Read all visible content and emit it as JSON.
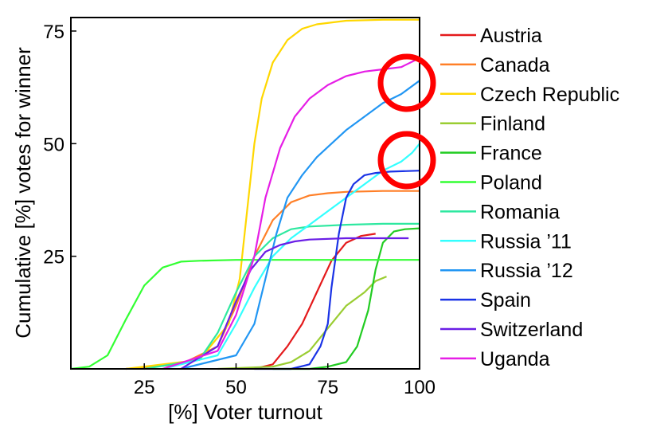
{
  "chart_data": {
    "type": "line",
    "xlabel": "[%] Voter turnout",
    "ylabel": "Cumulative [%] votes for winner",
    "xlim": [
      5,
      100
    ],
    "ylim": [
      0,
      78
    ],
    "xticks": [
      25,
      50,
      75,
      100
    ],
    "yticks": [
      25,
      50,
      75
    ],
    "grid": false,
    "legend_position": "right",
    "series": [
      {
        "name": "Austria",
        "color": "#e41a1c",
        "x": [
          55,
          60,
          64,
          68,
          72,
          76,
          80,
          84,
          88
        ],
        "y": [
          0,
          1,
          5,
          10,
          17,
          24,
          28,
          29.5,
          30
        ]
      },
      {
        "name": "Canada",
        "color": "#ff7f27",
        "x": [
          20,
          35,
          45,
          50,
          55,
          60,
          65,
          70,
          75,
          80,
          90,
          100
        ],
        "y": [
          0,
          1,
          5,
          14,
          25,
          33,
          37,
          38.5,
          39,
          39.3,
          39.5,
          39.5
        ]
      },
      {
        "name": "Czech Republic",
        "color": "#ffd700",
        "x": [
          20,
          40,
          48,
          51,
          53,
          55,
          57,
          60,
          64,
          68,
          72,
          80,
          90,
          100
        ],
        "y": [
          0,
          2,
          10,
          20,
          35,
          50,
          60,
          68,
          73,
          75.5,
          76.5,
          77.3,
          77.5,
          77.5
        ]
      },
      {
        "name": "Finland",
        "color": "#9acd32",
        "x": [
          45,
          60,
          65,
          70,
          75,
          80,
          85,
          88,
          91
        ],
        "y": [
          0,
          0.5,
          1.5,
          4,
          9,
          14,
          17,
          19.5,
          20.5
        ]
      },
      {
        "name": "France",
        "color": "#22cc22",
        "x": [
          60,
          70,
          75,
          80,
          83,
          86,
          88,
          90,
          93,
          96,
          100
        ],
        "y": [
          0,
          0,
          0.5,
          1.5,
          5,
          13,
          22,
          28,
          30.5,
          31,
          31.2
        ]
      },
      {
        "name": "Poland",
        "color": "#33ff33",
        "x": [
          5,
          10,
          15,
          20,
          25,
          30,
          35,
          40,
          50,
          60,
          70,
          80,
          90,
          100
        ],
        "y": [
          0,
          0.5,
          3,
          11,
          18.5,
          22.5,
          23.8,
          24,
          24.2,
          24.2,
          24.2,
          24.2,
          24.2,
          24.2
        ]
      },
      {
        "name": "Romania",
        "color": "#2ee8a0",
        "x": [
          25,
          40,
          45,
          50,
          55,
          60,
          65,
          70,
          80,
          90,
          100
        ],
        "y": [
          0,
          2,
          8,
          17,
          25,
          29,
          31,
          31.6,
          32,
          32.2,
          32.2
        ]
      },
      {
        "name": "Russia '11",
        "color": "#33ffff",
        "x": [
          30,
          45,
          50,
          55,
          60,
          65,
          70,
          75,
          80,
          85,
          90,
          95,
          98,
          100
        ],
        "y": [
          0,
          3,
          10,
          18,
          25,
          29,
          32,
          35,
          38,
          41,
          44,
          46,
          48,
          50
        ]
      },
      {
        "name": "Russia '12",
        "color": "#2196f3",
        "x": [
          35,
          50,
          55,
          58,
          61,
          64,
          68,
          72,
          76,
          80,
          85,
          90,
          95,
          100
        ],
        "y": [
          0,
          3,
          10,
          20,
          30,
          38,
          43,
          47,
          50,
          53,
          56,
          59,
          61,
          64
        ]
      },
      {
        "name": "Spain",
        "color": "#1a33e6",
        "x": [
          55,
          65,
          70,
          73,
          75,
          76,
          78,
          80,
          82,
          85,
          88,
          92,
          100
        ],
        "y": [
          0,
          0,
          1,
          5,
          10,
          18,
          30,
          38,
          41,
          43,
          43.5,
          43.8,
          44
        ]
      },
      {
        "name": "Switzerland",
        "color": "#6a1ee6",
        "x": [
          35,
          45,
          50,
          54,
          58,
          62,
          66,
          70,
          80,
          90,
          97
        ],
        "y": [
          0,
          5,
          15,
          22,
          26,
          27.5,
          28.3,
          28.7,
          29,
          29,
          29
        ]
      },
      {
        "name": "Uganda",
        "color": "#e61ee6",
        "x": [
          30,
          45,
          50,
          55,
          58,
          62,
          66,
          70,
          75,
          80,
          85,
          90,
          95,
          100
        ],
        "y": [
          0,
          4,
          12,
          25,
          38,
          49,
          56,
          60,
          63,
          65,
          66,
          66.5,
          67,
          69
        ]
      }
    ]
  }
}
